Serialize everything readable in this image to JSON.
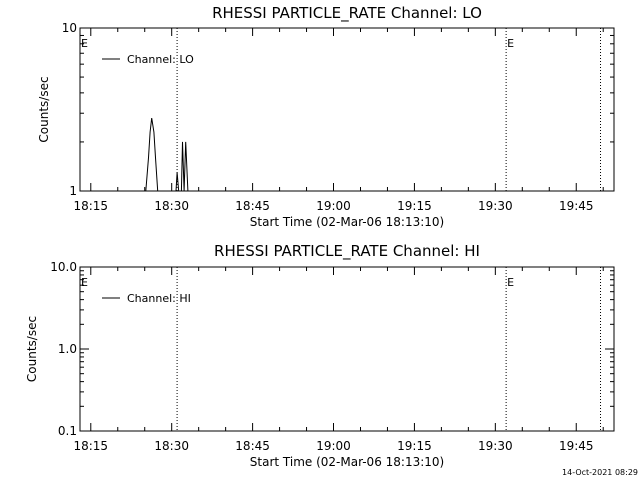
{
  "chart_data": [
    {
      "type": "line",
      "title": "RHESSI PARTICLE_RATE Channel: LO",
      "xlabel": "Start Time (02-Mar-06 18:13:10)",
      "ylabel": "Counts/sec",
      "y_scale": "log",
      "ylim": [
        1,
        10
      ],
      "yticks": [
        {
          "value": 1,
          "label": "1"
        },
        {
          "value": 10,
          "label": "10"
        }
      ],
      "xlim": [
        "18:13",
        "19:52"
      ],
      "xticks": [
        "18:15",
        "18:30",
        "18:45",
        "19:00",
        "19:15",
        "19:30",
        "19:45"
      ],
      "legend": {
        "label": "Channel: LO",
        "position": "top-left"
      },
      "grid": false,
      "vlines": [
        {
          "time": "18:31",
          "label": ""
        },
        {
          "time": "19:32",
          "label": "E"
        },
        {
          "time": "19:49.5",
          "label": ""
        }
      ],
      "corner_marker": "E",
      "series": [
        {
          "name": "Channel: LO",
          "points": [
            [
              "18:24.5",
              1
            ],
            [
              "18:25.2",
              1
            ],
            [
              "18:25.7",
              1.6
            ],
            [
              "18:26.0",
              2.3
            ],
            [
              "18:26.3",
              2.8
            ],
            [
              "18:26.7",
              2.3
            ],
            [
              "18:27.0",
              1.6
            ],
            [
              "18:27.4",
              1
            ],
            [
              "18:30.8",
              1
            ],
            [
              "18:31.0",
              1.3
            ],
            [
              "18:31.3",
              1
            ],
            [
              "18:31.8",
              1
            ],
            [
              "18:32.0",
              2.0
            ],
            [
              "18:32.3",
              1
            ],
            [
              "18:32.6",
              2.0
            ],
            [
              "18:33.0",
              1
            ],
            [
              "18:33.4",
              1
            ]
          ]
        }
      ]
    },
    {
      "type": "line",
      "title": "RHESSI PARTICLE_RATE Channel: HI",
      "xlabel": "Start Time (02-Mar-06 18:13:10)",
      "ylabel": "Counts/sec",
      "y_scale": "log",
      "ylim": [
        0.1,
        10
      ],
      "yticks": [
        {
          "value": 0.1,
          "label": "0.1"
        },
        {
          "value": 1,
          "label": "1.0"
        },
        {
          "value": 10,
          "label": "10.0"
        }
      ],
      "xlim": [
        "18:13",
        "19:52"
      ],
      "xticks": [
        "18:15",
        "18:30",
        "18:45",
        "19:00",
        "19:15",
        "19:30",
        "19:45"
      ],
      "legend": {
        "label": "Channel: HI",
        "position": "top-left"
      },
      "grid": false,
      "vlines": [
        {
          "time": "18:31",
          "label": ""
        },
        {
          "time": "19:32",
          "label": "E"
        },
        {
          "time": "19:49.5",
          "label": ""
        }
      ],
      "corner_marker": "E",
      "series": [
        {
          "name": "Channel: HI",
          "points": []
        }
      ]
    }
  ],
  "footer": {
    "timestamp": "14-Oct-2021 08:29"
  }
}
